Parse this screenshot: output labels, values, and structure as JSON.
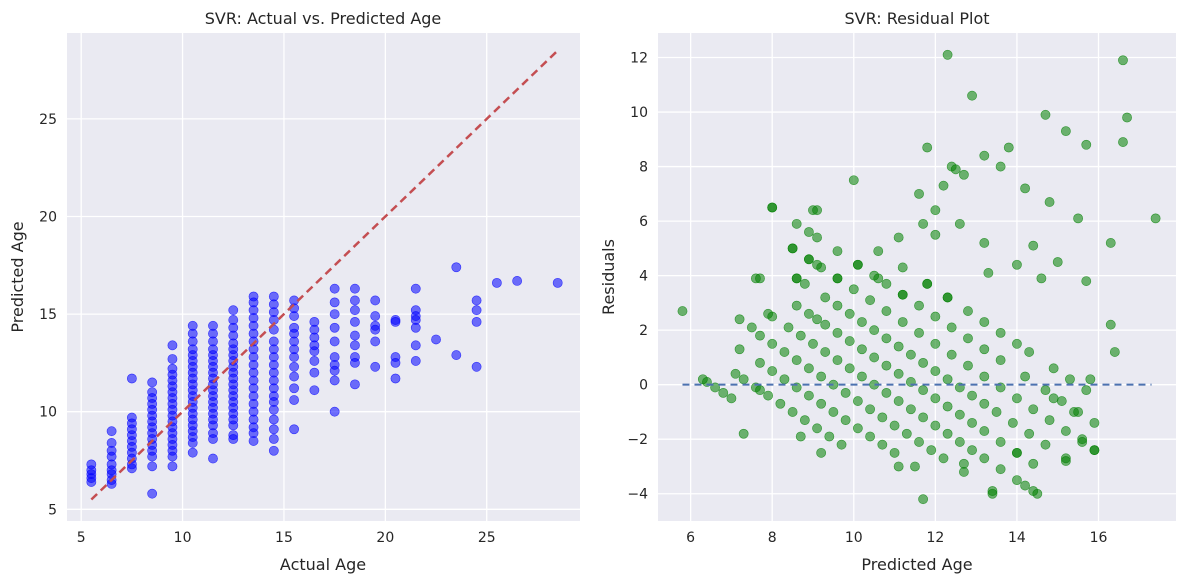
{
  "chart_data": [
    {
      "type": "scatter",
      "title": "SVR: Actual vs. Predicted Age",
      "xlabel": "Actual Age",
      "ylabel": "Predicted Age",
      "xlim": [
        4.3,
        29.6
      ],
      "ylim": [
        4.4,
        29.4
      ],
      "xticks": [
        5,
        10,
        15,
        20,
        25
      ],
      "yticks": [
        5,
        10,
        15,
        20,
        25
      ],
      "grid": true,
      "point_color": "#0000ff",
      "background": "#eaeaf2",
      "reference_line": {
        "x": [
          5.5,
          28.5
        ],
        "y": [
          5.5,
          28.5
        ],
        "color": "#c44e52",
        "style": "dashed"
      },
      "columns": [
        {
          "x": 5.5,
          "y_values": [
            7.3,
            7.0,
            6.8,
            6.6,
            6.4
          ]
        },
        {
          "x": 6.5,
          "y_values": [
            9.0,
            8.4,
            8.0,
            7.7,
            7.3,
            7.0,
            6.8,
            6.5,
            6.3
          ]
        },
        {
          "x": 7.5,
          "y_values": [
            11.7,
            9.7,
            9.4,
            9.1,
            8.8,
            8.5,
            8.2,
            7.9,
            7.6,
            7.3,
            7.1
          ]
        },
        {
          "x": 8.5,
          "y_values": [
            11.5,
            11.0,
            10.7,
            10.4,
            10.1,
            9.8,
            9.5,
            9.2,
            8.9,
            8.6,
            8.3,
            8.0,
            7.7,
            7.2,
            5.8
          ]
        },
        {
          "x": 9.5,
          "y_values": [
            13.4,
            12.7,
            12.2,
            11.9,
            11.6,
            11.3,
            11.0,
            10.7,
            10.4,
            10.1,
            9.8,
            9.5,
            9.2,
            8.9,
            8.6,
            8.3,
            8.0,
            7.7,
            7.2
          ]
        },
        {
          "x": 10.5,
          "y_values": [
            14.4,
            14.0,
            13.6,
            13.2,
            12.9,
            12.6,
            12.3,
            12.0,
            11.7,
            11.4,
            11.1,
            10.8,
            10.5,
            10.2,
            9.9,
            9.6,
            9.3,
            9.0,
            8.7,
            8.4,
            7.9
          ]
        },
        {
          "x": 11.5,
          "y_values": [
            14.4,
            14.0,
            13.6,
            13.2,
            12.9,
            12.6,
            12.3,
            12.0,
            11.7,
            11.4,
            11.1,
            10.8,
            10.5,
            10.2,
            9.9,
            9.6,
            9.3,
            8.9,
            8.6,
            7.6
          ]
        },
        {
          "x": 12.5,
          "y_values": [
            15.2,
            14.7,
            14.3,
            13.9,
            13.5,
            13.2,
            12.9,
            12.6,
            12.3,
            12.0,
            11.7,
            11.4,
            11.1,
            10.8,
            10.5,
            10.2,
            9.9,
            9.6,
            9.3,
            8.8,
            8.6
          ]
        },
        {
          "x": 13.5,
          "y_values": [
            15.9,
            15.6,
            15.2,
            14.8,
            14.4,
            14.0,
            13.6,
            13.2,
            12.8,
            12.4,
            12.0,
            11.6,
            11.2,
            10.8,
            10.4,
            10.0,
            9.6,
            9.2,
            8.9,
            8.5
          ]
        },
        {
          "x": 14.5,
          "y_values": [
            15.9,
            15.5,
            15.1,
            14.7,
            14.2,
            13.6,
            13.2,
            12.8,
            12.4,
            12.0,
            11.6,
            11.2,
            10.8,
            10.5,
            10.1,
            9.6,
            9.1,
            8.6,
            8.0
          ]
        },
        {
          "x": 15.5,
          "y_values": [
            15.7,
            15.3,
            14.9,
            14.3,
            14.0,
            13.6,
            13.2,
            12.8,
            12.3,
            11.8,
            11.2,
            10.6,
            9.1
          ]
        },
        {
          "x": 16.5,
          "y_values": [
            14.6,
            14.2,
            13.8,
            13.4,
            13.1,
            12.6,
            12.0,
            11.1
          ]
        },
        {
          "x": 17.5,
          "y_values": [
            16.3,
            15.6,
            15.0,
            14.3,
            13.6,
            12.8,
            12.4,
            12.1,
            11.6,
            10.0
          ]
        },
        {
          "x": 18.5,
          "y_values": [
            16.3,
            15.7,
            15.2,
            14.6,
            13.9,
            13.4,
            12.8,
            12.5,
            11.4
          ]
        },
        {
          "x": 19.5,
          "y_values": [
            15.7,
            14.9,
            14.4,
            14.2,
            13.6,
            12.3
          ]
        },
        {
          "x": 20.5,
          "y_values": [
            14.7,
            14.6,
            12.8,
            12.5,
            11.7
          ]
        },
        {
          "x": 21.5,
          "y_values": [
            16.3,
            15.2,
            14.9,
            14.7,
            14.3,
            13.4,
            12.6
          ]
        },
        {
          "x": 22.5,
          "y_values": [
            13.7
          ]
        },
        {
          "x": 23.5,
          "y_values": [
            17.4,
            12.9
          ]
        },
        {
          "x": 24.5,
          "y_values": [
            15.7,
            15.2,
            14.6,
            12.3
          ]
        },
        {
          "x": 25.5,
          "y_values": [
            16.6
          ]
        },
        {
          "x": 26.5,
          "y_values": [
            16.7
          ]
        },
        {
          "x": 28.5,
          "y_values": [
            16.6
          ]
        }
      ]
    },
    {
      "type": "scatter",
      "title": "SVR: Residual Plot",
      "xlabel": "Predicted Age",
      "ylabel": "Residuals",
      "xlim": [
        5.2,
        17.9
      ],
      "ylim": [
        -5.0,
        12.9
      ],
      "xticks": [
        6,
        8,
        10,
        12,
        14,
        16
      ],
      "yticks": [
        -4,
        -2,
        0,
        2,
        4,
        6,
        8,
        10,
        12
      ],
      "grid": true,
      "point_color": "#008000",
      "background": "#eaeaf2",
      "reference_line": {
        "x": [
          5.8,
          17.3
        ],
        "y": [
          0,
          0
        ],
        "color": "#4c72b0",
        "style": "dashed"
      },
      "note": "points follow diagonal bands residual = actual - predicted for integer-ish actual ages",
      "bands": [
        {
          "actual": 6.5,
          "pred_values": [
            6.4,
            6.6,
            6.8,
            7.0,
            6.3
          ]
        },
        {
          "actual": 7.5,
          "pred_values": [
            7.1,
            7.3,
            7.6,
            7.9,
            8.2,
            8.5,
            8.8,
            9.1,
            9.4,
            9.7,
            7.7
          ]
        },
        {
          "actual": 8.5,
          "pred_values": [
            7.2,
            7.7,
            8.0,
            8.3,
            8.6,
            8.9,
            9.2,
            9.5,
            9.8,
            10.1,
            10.4,
            10.7,
            11.0,
            11.5
          ]
        },
        {
          "actual": 9.5,
          "pred_values": [
            7.7,
            8.0,
            8.3,
            8.6,
            8.9,
            9.2,
            9.5,
            9.8,
            10.1,
            10.4,
            10.7,
            11.0,
            11.3,
            11.6,
            11.9,
            12.2,
            12.7,
            13.4
          ]
        },
        {
          "actual": 10.5,
          "pred_values": [
            7.9,
            8.4,
            8.7,
            9.0,
            9.3,
            9.6,
            9.9,
            10.2,
            10.5,
            10.8,
            11.1,
            11.4,
            11.7,
            12.0,
            12.3,
            12.6,
            12.9,
            13.2,
            13.6,
            14.0,
            14.4
          ]
        },
        {
          "actual": 11.5,
          "pred_values": [
            7.6,
            8.6,
            8.9,
            9.3,
            9.6,
            9.9,
            10.2,
            10.5,
            10.8,
            11.1,
            11.4,
            11.7,
            12.0,
            12.3,
            12.6,
            12.9,
            13.2,
            13.6,
            14.0,
            14.4
          ]
        },
        {
          "actual": 12.5,
          "pred_values": [
            8.6,
            8.8,
            9.3,
            9.6,
            9.9,
            10.2,
            10.5,
            10.8,
            11.1,
            11.4,
            11.7,
            12.0,
            12.3,
            12.6,
            12.9,
            13.2,
            13.5,
            13.9,
            14.3,
            14.7,
            15.2
          ]
        },
        {
          "actual": 13.5,
          "pred_values": [
            8.5,
            8.9,
            9.2,
            9.6,
            10.0,
            10.4,
            10.8,
            11.2,
            11.6,
            12.0,
            12.4,
            12.8,
            13.2,
            13.6,
            14.0,
            14.4,
            14.8,
            15.2,
            15.6,
            15.9
          ]
        },
        {
          "actual": 14.5,
          "pred_values": [
            8.0,
            8.6,
            9.1,
            9.6,
            10.1,
            10.5,
            10.8,
            11.2,
            11.6,
            12.0,
            12.4,
            12.8,
            13.2,
            13.6,
            14.2,
            14.7,
            15.1,
            15.5,
            15.9
          ]
        },
        {
          "actual": 15.5,
          "pred_values": [
            9.1,
            10.6,
            11.2,
            11.8,
            12.3,
            12.8,
            13.2,
            13.6,
            14.0,
            14.3,
            14.9,
            15.3,
            15.7
          ]
        }
      ],
      "extra_points": [
        {
          "x": 5.8,
          "y": 2.7
        },
        {
          "x": 7.2,
          "y": 2.4
        },
        {
          "x": 7.5,
          "y": 2.1
        },
        {
          "x": 7.7,
          "y": 3.9
        },
        {
          "x": 8.0,
          "y": 6.5
        },
        {
          "x": 8.0,
          "y": 2.5
        },
        {
          "x": 8.5,
          "y": 5.0
        },
        {
          "x": 8.6,
          "y": 3.9
        },
        {
          "x": 8.9,
          "y": 4.6
        },
        {
          "x": 8.9,
          "y": 5.6
        },
        {
          "x": 9.0,
          "y": 6.4
        },
        {
          "x": 9.1,
          "y": 4.4
        },
        {
          "x": 9.1,
          "y": 2.4
        },
        {
          "x": 9.6,
          "y": 3.9
        },
        {
          "x": 10.0,
          "y": 7.5
        },
        {
          "x": 10.1,
          "y": 4.4
        },
        {
          "x": 10.6,
          "y": 3.9
        },
        {
          "x": 11.1,
          "y": 5.4
        },
        {
          "x": 11.2,
          "y": 3.3
        },
        {
          "x": 11.6,
          "y": 7.0
        },
        {
          "x": 11.7,
          "y": 5.9
        },
        {
          "x": 11.8,
          "y": 3.7
        },
        {
          "x": 11.8,
          "y": 8.7
        },
        {
          "x": 12.0,
          "y": 6.4
        },
        {
          "x": 12.0,
          "y": 5.5
        },
        {
          "x": 12.2,
          "y": 7.3
        },
        {
          "x": 12.3,
          "y": 3.2
        },
        {
          "x": 12.3,
          "y": 12.1
        },
        {
          "x": 12.4,
          "y": 8.0
        },
        {
          "x": 12.5,
          "y": 7.9
        },
        {
          "x": 12.6,
          "y": 5.9
        },
        {
          "x": 12.7,
          "y": 7.7
        },
        {
          "x": 12.9,
          "y": 10.6
        },
        {
          "x": 13.2,
          "y": 8.4
        },
        {
          "x": 13.2,
          "y": 5.2
        },
        {
          "x": 13.3,
          "y": 4.1
        },
        {
          "x": 13.6,
          "y": 8.0
        },
        {
          "x": 13.8,
          "y": 8.7
        },
        {
          "x": 14.0,
          "y": 4.4
        },
        {
          "x": 14.2,
          "y": 7.2
        },
        {
          "x": 14.4,
          "y": 5.1
        },
        {
          "x": 14.6,
          "y": 3.9
        },
        {
          "x": 14.7,
          "y": 9.9
        },
        {
          "x": 14.8,
          "y": 6.7
        },
        {
          "x": 15.0,
          "y": 4.5
        },
        {
          "x": 15.2,
          "y": 9.3
        },
        {
          "x": 15.5,
          "y": 6.1
        },
        {
          "x": 15.7,
          "y": 8.8
        },
        {
          "x": 15.7,
          "y": 3.8
        },
        {
          "x": 16.3,
          "y": 5.2
        },
        {
          "x": 16.3,
          "y": 2.2
        },
        {
          "x": 16.4,
          "y": 1.2
        },
        {
          "x": 16.6,
          "y": 11.9
        },
        {
          "x": 16.6,
          "y": 8.9
        },
        {
          "x": 16.7,
          "y": 9.8
        },
        {
          "x": 17.4,
          "y": 6.1
        },
        {
          "x": 14.0,
          "y": -2.5
        },
        {
          "x": 14.2,
          "y": -3.7
        },
        {
          "x": 14.5,
          "y": -4.0
        },
        {
          "x": 13.4,
          "y": -4.0
        },
        {
          "x": 11.7,
          "y": -4.2
        },
        {
          "x": 11.1,
          "y": -3.0
        },
        {
          "x": 12.7,
          "y": -2.9
        },
        {
          "x": 15.2,
          "y": -2.8
        },
        {
          "x": 15.9,
          "y": -2.4
        },
        {
          "x": 15.6,
          "y": -2.0
        },
        {
          "x": 9.2,
          "y": -2.5
        },
        {
          "x": 7.3,
          "y": -1.8
        },
        {
          "x": 8.7,
          "y": -1.9
        },
        {
          "x": 14.9,
          "y": -0.5
        },
        {
          "x": 15.4,
          "y": -1.0
        },
        {
          "x": 15.8,
          "y": 0.2
        }
      ]
    }
  ]
}
